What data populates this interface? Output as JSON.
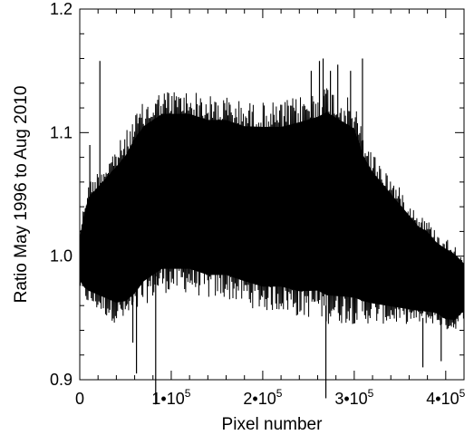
{
  "chart_data": {
    "type": "line",
    "title": "",
    "xlabel": "Pixel number",
    "ylabel": "Ratio May 1996 to Aug 2010",
    "xlim": [
      0,
      420000
    ],
    "ylim": [
      0.9,
      1.2
    ],
    "grid": false,
    "legend": "none",
    "x_ticks": [
      {
        "value": 0,
        "label": "0"
      },
      {
        "value": 100000,
        "label": "1•10",
        "exp": "5"
      },
      {
        "value": 200000,
        "label": "2•10",
        "exp": "5"
      },
      {
        "value": 300000,
        "label": "3•10",
        "exp": "5"
      },
      {
        "value": 400000,
        "label": "4•10",
        "exp": "5"
      }
    ],
    "y_ticks": [
      {
        "value": 0.9,
        "label": "0.9"
      },
      {
        "value": 1.0,
        "label": "1.0"
      },
      {
        "value": 1.1,
        "label": "1.1"
      },
      {
        "value": 1.2,
        "label": "1.2"
      }
    ],
    "line_color": "#000000",
    "envelope": {
      "x": [
        0,
        5000,
        10000,
        20000,
        30000,
        40000,
        50000,
        60000,
        70000,
        80000,
        90000,
        100000,
        120000,
        140000,
        160000,
        180000,
        200000,
        220000,
        240000,
        260000,
        270000,
        280000,
        290000,
        300000,
        310000,
        320000,
        330000,
        340000,
        350000,
        360000,
        370000,
        380000,
        390000,
        400000,
        410000,
        420000
      ],
      "upper": [
        1.02,
        1.045,
        1.06,
        1.07,
        1.08,
        1.09,
        1.1,
        1.115,
        1.125,
        1.13,
        1.135,
        1.135,
        1.135,
        1.13,
        1.13,
        1.125,
        1.125,
        1.125,
        1.13,
        1.135,
        1.14,
        1.135,
        1.13,
        1.125,
        1.1,
        1.085,
        1.075,
        1.065,
        1.055,
        1.045,
        1.035,
        1.03,
        1.02,
        1.015,
        1.01,
        1.0
      ],
      "lower": [
        0.975,
        0.965,
        0.96,
        0.955,
        0.95,
        0.945,
        0.945,
        0.95,
        0.96,
        0.965,
        0.97,
        0.97,
        0.97,
        0.965,
        0.965,
        0.96,
        0.955,
        0.955,
        0.95,
        0.95,
        0.945,
        0.945,
        0.945,
        0.945,
        0.945,
        0.945,
        0.945,
        0.945,
        0.945,
        0.945,
        0.945,
        0.945,
        0.945,
        0.94,
        0.94,
        0.95
      ]
    },
    "spikes": [
      {
        "x": 22000,
        "y1": 1.0,
        "y2": 1.158
      },
      {
        "x": 11000,
        "y1": 0.98,
        "y2": 1.09
      },
      {
        "x": 62000,
        "y1": 0.905,
        "y2": 1.0
      },
      {
        "x": 83000,
        "y1": 0.88,
        "y2": 1.0
      },
      {
        "x": 58000,
        "y1": 0.93,
        "y2": 1.0
      },
      {
        "x": 253000,
        "y1": 1.1,
        "y2": 1.15
      },
      {
        "x": 262000,
        "y1": 1.1,
        "y2": 1.158
      },
      {
        "x": 266000,
        "y1": 1.1,
        "y2": 1.16
      },
      {
        "x": 274000,
        "y1": 1.1,
        "y2": 1.15
      },
      {
        "x": 282000,
        "y1": 1.1,
        "y2": 1.155
      },
      {
        "x": 296000,
        "y1": 1.1,
        "y2": 1.15
      },
      {
        "x": 309000,
        "y1": 1.08,
        "y2": 1.16
      },
      {
        "x": 269000,
        "y1": 0.885,
        "y2": 0.96
      },
      {
        "x": 375000,
        "y1": 0.91,
        "y2": 0.95
      },
      {
        "x": 395000,
        "y1": 0.915,
        "y2": 0.95
      }
    ]
  }
}
